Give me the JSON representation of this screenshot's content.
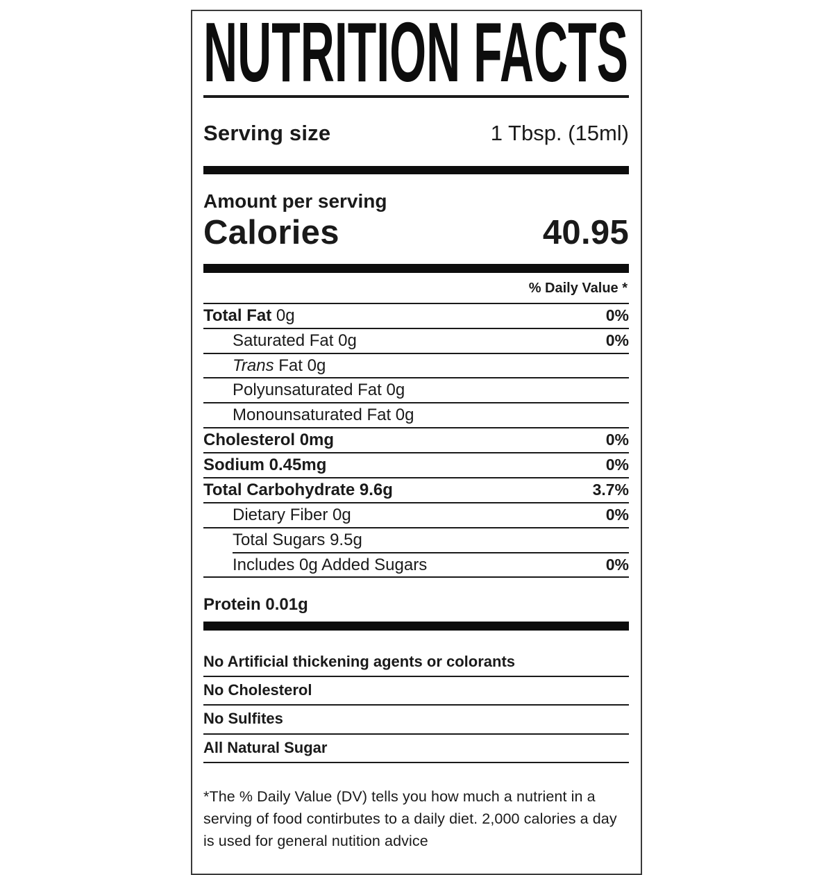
{
  "title": "NUTRITION FACTS",
  "serving": {
    "label": "Serving size",
    "value": "1 Tbsp. (15ml)"
  },
  "calories": {
    "header": "Amount per serving",
    "label": "Calories",
    "value": "40.95"
  },
  "daily_value_header": "% Daily Value *",
  "nutrients": [
    {
      "label": "Total Fat",
      "amount": "0g",
      "dv": "0%",
      "bold": true,
      "amount_bold": false,
      "indent": false
    },
    {
      "label": "Saturated Fat",
      "amount": "0g",
      "dv": "0%",
      "bold": false,
      "indent": true
    },
    {
      "label": "Trans",
      "amount": "Fat 0g",
      "dv": "",
      "bold": false,
      "italic": true,
      "indent": true
    },
    {
      "label": "Polyunsaturated Fat",
      "amount": "0g",
      "dv": "",
      "bold": false,
      "indent": true
    },
    {
      "label": "Monounsaturated Fat",
      "amount": "0g",
      "dv": "",
      "bold": false,
      "indent": true
    },
    {
      "label": "Cholesterol",
      "amount": "0mg",
      "dv": "0%",
      "bold": true,
      "amount_bold": true,
      "indent": false
    },
    {
      "label": "Sodium",
      "amount": "0.45mg",
      "dv": "0%",
      "bold": true,
      "amount_bold": true,
      "indent": false
    },
    {
      "label": "Total Carbohydrate",
      "amount": "9.6g",
      "dv": "3.7%",
      "bold": true,
      "amount_bold": true,
      "indent": false
    },
    {
      "label": "Dietary Fiber",
      "amount": "0g",
      "dv": "0%",
      "bold": false,
      "indent": true
    },
    {
      "label": "Total Sugars",
      "amount": "9.5g",
      "dv": "",
      "bold": false,
      "indent": true,
      "partial_rule": true
    },
    {
      "label": "Includes 0g Added Sugars",
      "amount": "",
      "dv": "0%",
      "bold": false,
      "indent": true
    }
  ],
  "protein": {
    "label": "Protein",
    "amount": "0.01g"
  },
  "claims": [
    "No Artificial thickening agents or colorants",
    "No Cholesterol",
    "No Sulfites",
    "All Natural Sugar"
  ],
  "footnote": "*The % Daily Value (DV) tells you how much a nutrient in a serving of food contirbutes to a daily diet. 2,000 calories a day is used for general nutition advice",
  "colors": {
    "text": "#1a1a1a",
    "bar": "#0d0d0d",
    "rule": "#1a1a1a",
    "border": "#3a3a3a"
  }
}
